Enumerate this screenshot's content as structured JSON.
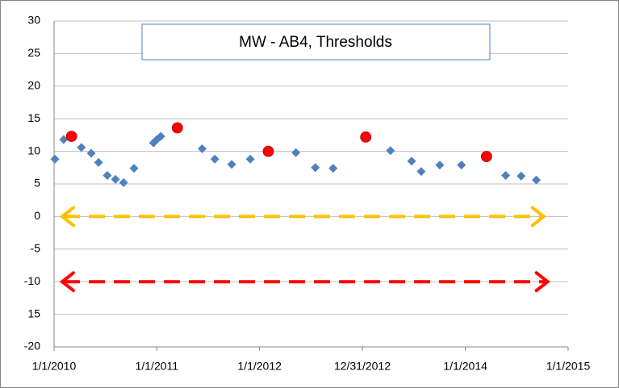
{
  "chart_data": {
    "type": "scatter",
    "title": "MW - AB4, Thresholds",
    "xlim": [
      "2010-01-01",
      "2015-01-01"
    ],
    "xticks": [
      {
        "value": "2010-01-01",
        "label": "1/1/2010"
      },
      {
        "value": "2011-01-01",
        "label": "1/1/2011"
      },
      {
        "value": "2012-01-01",
        "label": "1/1/2012"
      },
      {
        "value": "2012-12-31",
        "label": "12/31/2012"
      },
      {
        "value": "2014-01-01",
        "label": "1/1/2014"
      },
      {
        "value": "2015-01-01",
        "label": "1/1/2015"
      }
    ],
    "ylim": [
      -20,
      30
    ],
    "yticks": [
      30,
      25,
      20,
      15,
      10,
      5,
      0,
      -5,
      -10,
      {
        "value": -15,
        "label": "15"
      },
      -20
    ],
    "grid": true,
    "series": [
      {
        "color": "#4f81bd",
        "marker": "diamond",
        "x": [
          "2010-01-04",
          "2010-02-04",
          "2010-04-08",
          "2010-05-13",
          "2010-06-08",
          "2010-07-09",
          "2010-08-07",
          "2010-09-05",
          "2010-10-12",
          "2010-12-20",
          "2011-01-01",
          "2011-01-15",
          "2011-06-11",
          "2011-07-26",
          "2011-09-24",
          "2011-11-29",
          "2012-05-09",
          "2012-07-17",
          "2012-09-18",
          "2013-04-10",
          "2013-06-24",
          "2013-07-28",
          "2013-10-02",
          "2013-12-18",
          "2014-05-24",
          "2014-07-18",
          "2014-09-10"
        ],
        "values": [
          8.8,
          11.8,
          10.6,
          9.7,
          8.3,
          6.3,
          5.7,
          5.2,
          7.4,
          11.3,
          11.8,
          12.3,
          10.4,
          8.8,
          8.0,
          8.8,
          9.8,
          7.5,
          7.4,
          10.1,
          8.5,
          6.9,
          7.9,
          7.9,
          6.3,
          6.2,
          5.6
        ]
      },
      {
        "color": "#ff0000",
        "marker": "circle",
        "x": [
          "2010-03-04",
          "2011-03-15",
          "2012-02-01",
          "2013-01-12",
          "2014-03-17"
        ],
        "values": [
          12.3,
          13.6,
          10.0,
          12.2,
          9.2
        ]
      },
      {
        "color": "#ffc000",
        "marker": "dashed-arrow",
        "x": [
          "2010-01-24",
          "2014-10-12"
        ],
        "values": [
          0,
          0
        ]
      },
      {
        "color": "#ff0000",
        "marker": "dashed-arrow",
        "x": [
          "2010-01-24",
          "2014-10-26"
        ],
        "values": [
          -10,
          -10
        ]
      }
    ]
  }
}
